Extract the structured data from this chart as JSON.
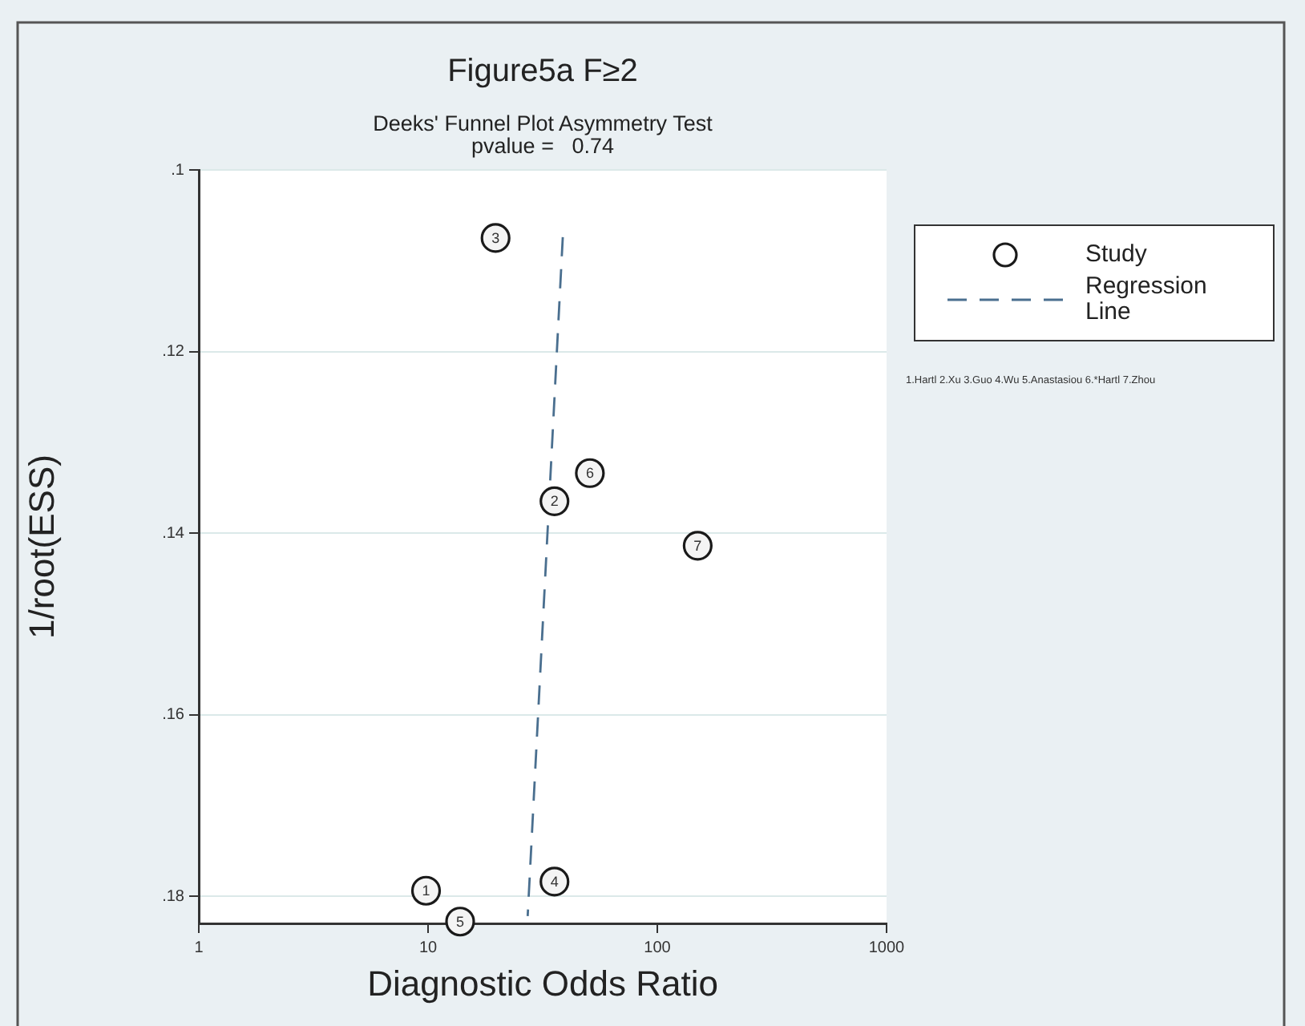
{
  "chart_data": {
    "type": "scatter",
    "title": "Figure5a F≥2",
    "subtitle": "Deeks' Funnel Plot Asymmetry Test\npvalue =   0.74",
    "xlabel": "Diagnostic Odds Ratio",
    "ylabel": "1/root(ESS)",
    "series": [
      {
        "name": "Study",
        "type": "scatter",
        "color": "#1a1a1a",
        "marker": "circle",
        "x": [
          9.8,
          35.6,
          19.7,
          35.6,
          13.8,
          50.8,
          150
        ],
        "values": [
          0.1794,
          0.1365,
          0.1075,
          0.1784,
          0.1828,
          0.1334,
          0.1414
        ]
      },
      {
        "name": "Regression Line",
        "type": "line",
        "color": "#4a6f8f",
        "marker": "none",
        "line_style": "dashed",
        "x": [
          38.7,
          27.2
        ],
        "values": [
          0.1074,
          0.1822
        ]
      }
    ],
    "log": "x",
    "xlim": [
      1,
      1000
    ],
    "xticks": [
      1,
      10,
      100,
      1000
    ],
    "ylim": [
      0.183,
      0.1
    ],
    "yticks": [
      {
        "value": 0.1,
        "label": ".1"
      },
      {
        "value": 0.12,
        "label": ".12"
      },
      {
        "value": 0.14,
        "label": ".14"
      },
      {
        "value": 0.16,
        "label": ".16"
      },
      {
        "value": 0.18,
        "label": ".18"
      }
    ],
    "grid": "y",
    "legend": "top right",
    "annotations": [
      {
        "text": "1",
        "x": 9.8,
        "y": 0.1794
      },
      {
        "text": "2",
        "x": 35.6,
        "y": 0.1365
      },
      {
        "text": "3",
        "x": 19.7,
        "y": 0.1075
      },
      {
        "text": "4",
        "x": 35.6,
        "y": 0.1784
      },
      {
        "text": "5",
        "x": 13.8,
        "y": 0.1828
      },
      {
        "text": "6",
        "x": 50.8,
        "y": 0.1334
      },
      {
        "text": "7",
        "x": 150,
        "y": 0.1414
      },
      "1.Hartl 2.Xu 3.Guo 4.Wu 5.Anastasiou 6.*Hartl 7.Zhou"
    ]
  }
}
